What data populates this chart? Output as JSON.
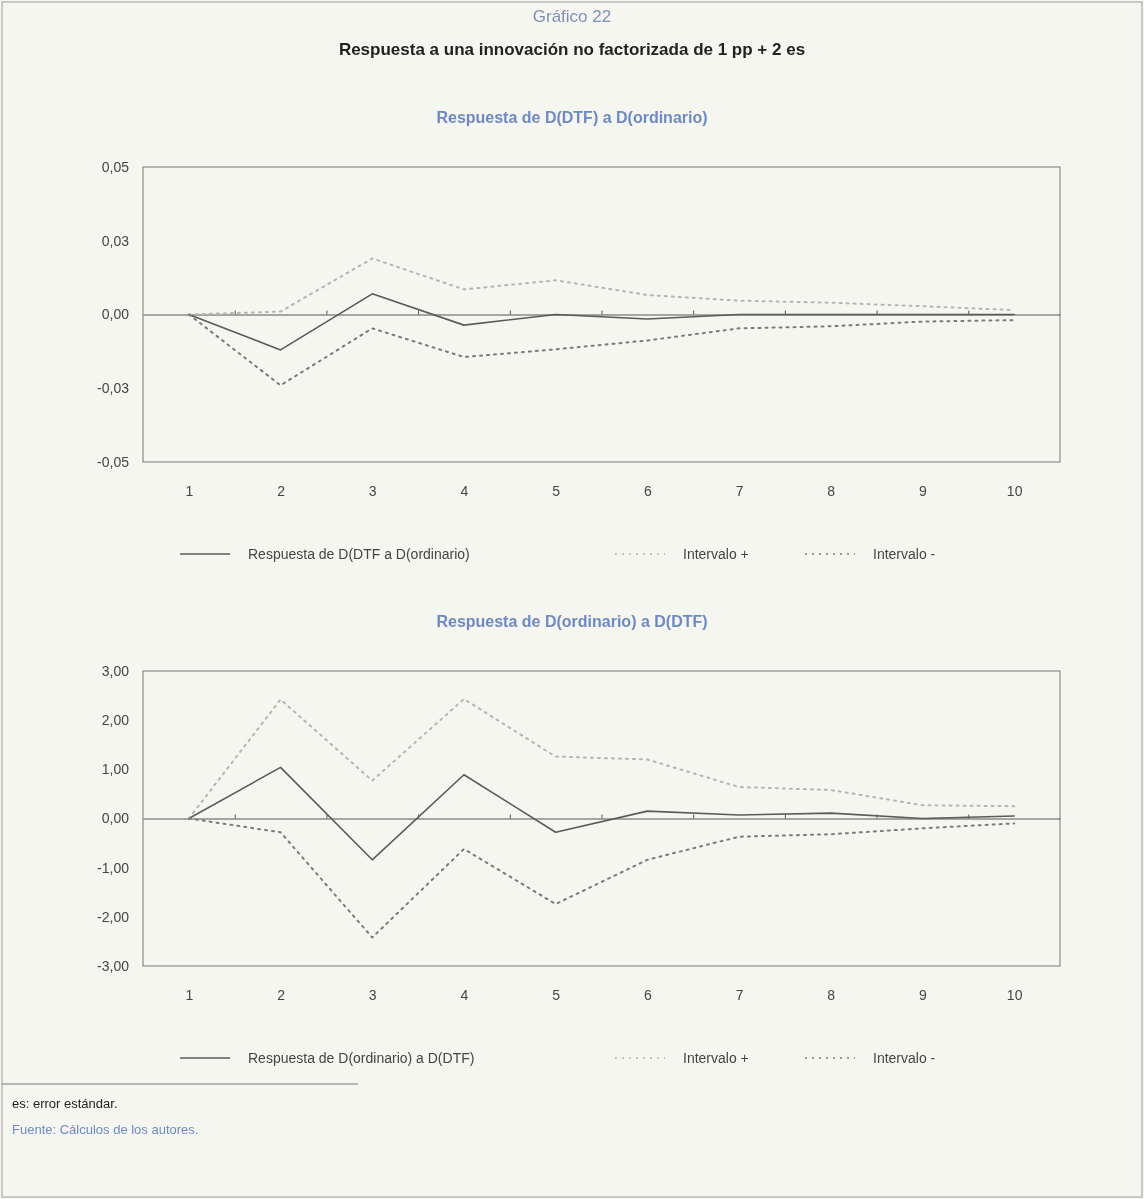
{
  "chart_data": [
    {
      "type": "line",
      "title": "Respuesta a una innovación no factorizada de 1 pp + 2 es",
      "subtitle": "Respuesta de D(DTF) a D(ordinario)",
      "annotations": [
        "Gráfico 22"
      ],
      "x": [
        1,
        2,
        3,
        4,
        5,
        6,
        7,
        8,
        9,
        10
      ],
      "xlim": [
        0.5,
        10.5
      ],
      "xticks": [
        1,
        2,
        3,
        4,
        5,
        6,
        7,
        8,
        9,
        10
      ],
      "ylim": [
        -0.05,
        0.05
      ],
      "yticks": [
        {
          "value": -0.05,
          "label": "-0,05"
        },
        {
          "value": -0.025,
          "label": "-0,03"
        },
        {
          "value": 0,
          "label": "0,00"
        },
        {
          "value": 0.025,
          "label": "0,03"
        },
        {
          "value": 0.05,
          "label": "0,05"
        }
      ],
      "legend": "bottom",
      "series": [
        {
          "name": "Respuesta de D(DTF a D(ordinario)",
          "color": "#5a5a5a",
          "line_style": "solid",
          "values": [
            0,
            -0.012,
            0.007,
            -0.0036,
            0,
            -0.0015,
            0,
            0,
            0,
            0
          ]
        },
        {
          "name": "Intervalo +",
          "color": "#b4b4b4",
          "line_style": "dotted",
          "values": [
            0,
            0.001,
            0.019,
            0.0085,
            0.0116,
            0.0066,
            0.0047,
            0.004,
            0.0028,
            0.0015
          ]
        },
        {
          "name": "Intervalo -",
          "color": "#7a7a7a",
          "line_style": "dotted",
          "values": [
            0,
            -0.024,
            -0.0047,
            -0.0144,
            -0.0118,
            -0.0088,
            -0.0047,
            -0.004,
            -0.0024,
            -0.0019
          ]
        }
      ]
    },
    {
      "type": "line",
      "subtitle": "Respuesta de D(ordinario)  a  D(DTF)",
      "annotations": [
        "es: error estándar.",
        "Fuente: Cálculos de los autores."
      ],
      "x": [
        1,
        2,
        3,
        4,
        5,
        6,
        7,
        8,
        9,
        10
      ],
      "xlim": [
        0.5,
        10.5
      ],
      "xticks": [
        1,
        2,
        3,
        4,
        5,
        6,
        7,
        8,
        9,
        10
      ],
      "ylim": [
        -3,
        3
      ],
      "yticks": [
        {
          "value": -3,
          "label": "-3,00"
        },
        {
          "value": -2,
          "label": "-2,00"
        },
        {
          "value": -1,
          "label": "-1,00"
        },
        {
          "value": 0,
          "label": "0,00"
        },
        {
          "value": 1,
          "label": "1,00"
        },
        {
          "value": 2,
          "label": "2,00"
        },
        {
          "value": 3,
          "label": "3,00"
        }
      ],
      "legend": "bottom",
      "series": [
        {
          "name": "Respuesta de D(ordinario) a D(DTF)",
          "color": "#5a5a5a",
          "line_style": "solid",
          "values": [
            0,
            1.04,
            -0.84,
            0.89,
            -0.28,
            0.15,
            0.07,
            0.11,
            0,
            0.05
          ]
        },
        {
          "name": "Intervalo +",
          "color": "#b4b4b4",
          "line_style": "dotted",
          "values": [
            0,
            2.42,
            0.77,
            2.43,
            1.26,
            1.2,
            0.64,
            0.58,
            0.27,
            0.25
          ]
        },
        {
          "name": "Intervalo -",
          "color": "#7a7a7a",
          "line_style": "dotted",
          "values": [
            0,
            -0.28,
            -2.42,
            -0.62,
            -1.74,
            -0.84,
            -0.37,
            -0.32,
            -0.2,
            -0.1
          ]
        }
      ]
    }
  ]
}
